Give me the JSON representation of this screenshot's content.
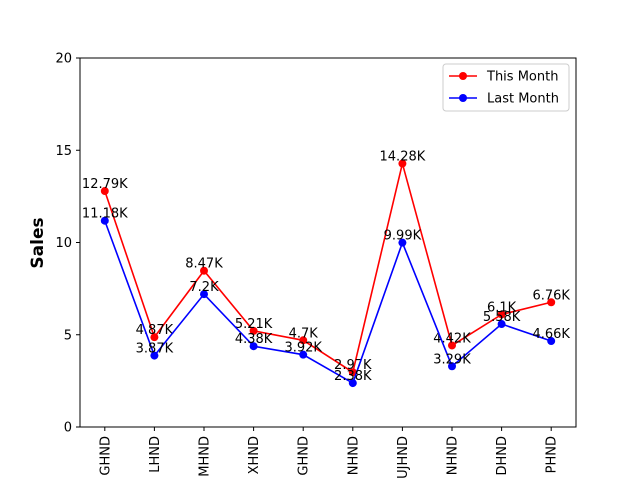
{
  "chart_data": {
    "type": "line",
    "title": "",
    "xlabel": "",
    "ylabel": "Sales",
    "ylim": [
      0,
      20
    ],
    "yticks": [
      0,
      5,
      10,
      15,
      20
    ],
    "categories": [
      "GHND",
      "LHND",
      "MHND",
      "XHND",
      "GHND",
      "NHND",
      "UJHND",
      "NHND",
      "DHND",
      "PHND"
    ],
    "series": [
      {
        "name": "This Month",
        "color": "#ff0000",
        "values": [
          12.79,
          4.87,
          8.47,
          5.21,
          4.7,
          2.97,
          14.28,
          4.42,
          6.1,
          6.76
        ],
        "labels": [
          "12.79K",
          "4.87K",
          "8.47K",
          "5.21K",
          "4.7K",
          "2.97K",
          "14.28K",
          "4.42K",
          "6.1K",
          "6.76K"
        ]
      },
      {
        "name": "Last Month",
        "color": "#0000ff",
        "values": [
          11.18,
          3.87,
          7.2,
          4.38,
          3.92,
          2.38,
          9.99,
          3.29,
          5.58,
          4.66
        ],
        "labels": [
          "11.18K",
          "3.87K",
          "7.2K",
          "4.38K",
          "3.92K",
          "2.38K",
          "9.99K",
          "3.29K",
          "5.58K",
          "4.66K"
        ]
      }
    ],
    "legend": "top-right",
    "grid": false
  }
}
